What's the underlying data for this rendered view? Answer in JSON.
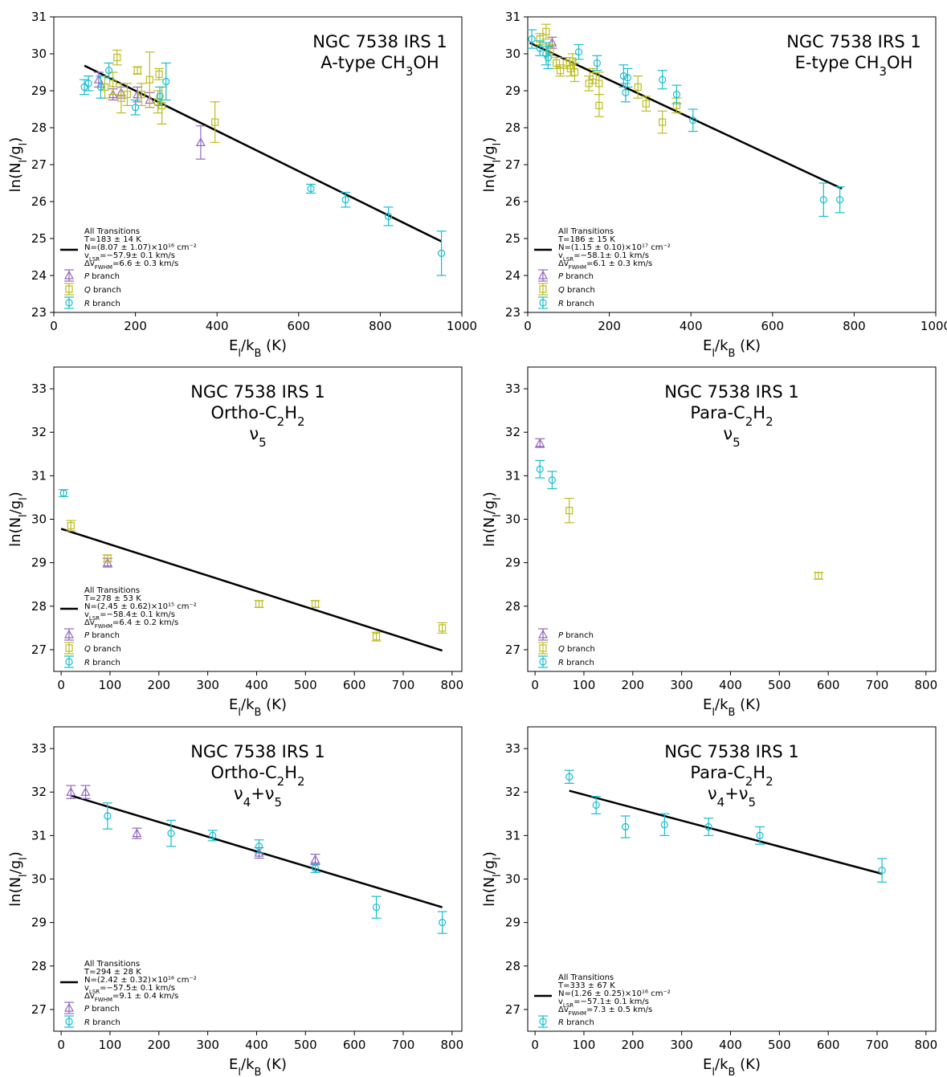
{
  "figure": {
    "panel_title": "NGC 7538 IRS 1",
    "xlabel": "E_l/k_B (K)",
    "ylabel": "ln(N_l/g_l)",
    "legend_fit_title": "All Transitions",
    "legend_p": "P branch",
    "legend_q": "Q branch",
    "legend_r": "R branch",
    "colors": {
      "P": "#9467bd",
      "Q": "#bcbd22",
      "R": "#17becf",
      "fit": "#000000"
    }
  },
  "chart_data": [
    {
      "type": "scatter",
      "subtitle": "A-type CH3OH",
      "xlim": [
        0,
        1000
      ],
      "ylim": [
        23,
        31
      ],
      "xticks": [
        0,
        200,
        400,
        600,
        800,
        1000
      ],
      "yticks": [
        23,
        24,
        25,
        26,
        27,
        28,
        29,
        30,
        31
      ],
      "fit": {
        "x": [
          75,
          950
        ],
        "y": [
          29.68,
          24.92
        ]
      },
      "legend": [
        "T=183 ± 14 K",
        "N=(8.07 ± 1.07)×10¹⁶ cm⁻²",
        "vLSR=−57.9± 0.1 km/s",
        "ΔvFWHM=6.6 ± 0.3 km/s"
      ],
      "legend_branches": [
        "P",
        "Q",
        "R"
      ],
      "series": [
        {
          "branch": "P",
          "points": [
            [
              110,
              29.3,
              0.2
            ],
            [
              145,
              28.9,
              0.15
            ],
            [
              165,
              28.95,
              0.15
            ],
            [
              205,
              28.9,
              0.2
            ],
            [
              235,
              28.75,
              0.2
            ],
            [
              360,
              27.6,
              0.45
            ]
          ]
        },
        {
          "branch": "Q",
          "points": [
            [
              125,
              29.1,
              0.3
            ],
            [
              145,
              29.2,
              0.3
            ],
            [
              155,
              29.9,
              0.2
            ],
            [
              165,
              28.8,
              0.4
            ],
            [
              180,
              28.9,
              0.3
            ],
            [
              205,
              29.55,
              0.1
            ],
            [
              215,
              28.9,
              0.3
            ],
            [
              235,
              29.3,
              0.75
            ],
            [
              255,
              28.7,
              0.3
            ],
            [
              258,
              29.45,
              0.15
            ],
            [
              265,
              28.6,
              0.5
            ],
            [
              395,
              28.15,
              0.55
            ]
          ]
        },
        {
          "branch": "R",
          "points": [
            [
              75,
              29.1,
              0.2
            ],
            [
              85,
              29.2,
              0.2
            ],
            [
              115,
              29.1,
              0.3
            ],
            [
              135,
              29.55,
              0.2
            ],
            [
              200,
              28.55,
              0.2
            ],
            [
              260,
              28.85,
              0.25
            ],
            [
              275,
              29.25,
              0.5
            ],
            [
              630,
              26.35,
              0.12
            ],
            [
              715,
              26.05,
              0.2
            ],
            [
              820,
              25.6,
              0.25
            ],
            [
              950,
              24.6,
              0.6
            ]
          ]
        }
      ]
    },
    {
      "type": "scatter",
      "subtitle": "E-type CH3OH",
      "xlim": [
        0,
        1000
      ],
      "ylim": [
        23,
        31
      ],
      "xticks": [
        0,
        200,
        400,
        600,
        800,
        1000
      ],
      "yticks": [
        23,
        24,
        25,
        26,
        27,
        28,
        29,
        30,
        31
      ],
      "fit": {
        "x": [
          5,
          770
        ],
        "y": [
          30.3,
          26.35
        ]
      },
      "legend": [
        "T=186 ± 15 K",
        "N=(1.15 ± 0.10)×10¹⁷ cm⁻²",
        "vLSR=−58.1± 0.1 km/s",
        "ΔvFWHM=6.1 ± 0.3 km/s"
      ],
      "legend_branches": [
        "P",
        "Q",
        "R"
      ],
      "series": [
        {
          "branch": "P",
          "points": [
            [
              60,
              30.3,
              0.15
            ]
          ]
        },
        {
          "branch": "Q",
          "points": [
            [
              30,
              30.4,
              0.15
            ],
            [
              45,
              30.6,
              0.2
            ],
            [
              55,
              30.1,
              0.15
            ],
            [
              70,
              29.75,
              0.15
            ],
            [
              80,
              29.55,
              0.15
            ],
            [
              95,
              29.75,
              0.15
            ],
            [
              105,
              29.6,
              0.2
            ],
            [
              110,
              29.8,
              0.2
            ],
            [
              115,
              29.5,
              0.25
            ],
            [
              150,
              29.2,
              0.2
            ],
            [
              160,
              29.4,
              0.2
            ],
            [
              175,
              28.6,
              0.3
            ],
            [
              175,
              29.2,
              0.3
            ],
            [
              270,
              29.1,
              0.3
            ],
            [
              290,
              28.65,
              0.2
            ],
            [
              330,
              28.15,
              0.3
            ],
            [
              365,
              28.6,
              0.2
            ]
          ]
        },
        {
          "branch": "R",
          "points": [
            [
              10,
              30.4,
              0.25
            ],
            [
              30,
              30.15,
              0.2
            ],
            [
              45,
              30.0,
              0.3
            ],
            [
              50,
              29.9,
              0.3
            ],
            [
              125,
              30.05,
              0.2
            ],
            [
              170,
              29.75,
              0.2
            ],
            [
              235,
              29.4,
              0.3
            ],
            [
              240,
              28.95,
              0.25
            ],
            [
              245,
              29.35,
              0.25
            ],
            [
              330,
              29.3,
              0.25
            ],
            [
              365,
              28.9,
              0.25
            ],
            [
              405,
              28.2,
              0.3
            ],
            [
              725,
              26.05,
              0.45
            ],
            [
              765,
              26.05,
              0.35
            ]
          ]
        }
      ]
    },
    {
      "type": "scatter",
      "subtitle": "Ortho-C2H2",
      "subtitle2": "ν5",
      "xlim": [
        -15,
        820
      ],
      "ylim": [
        26.5,
        33.5
      ],
      "xticks": [
        0,
        100,
        200,
        300,
        400,
        500,
        600,
        700,
        800
      ],
      "yticks": [
        27,
        28,
        29,
        30,
        31,
        32,
        33
      ],
      "fit": {
        "x": [
          0,
          780
        ],
        "y": [
          29.78,
          26.98
        ]
      },
      "legend": [
        "T=278 ± 53 K",
        "N=(2.45 ± 0.62)×10¹⁵ cm⁻²",
        "vLSR=−58.4± 0.1 km/s",
        "ΔvFWHM=6.4 ± 0.2 km/s"
      ],
      "legend_branches": [
        "P",
        "Q",
        "R"
      ],
      "series": [
        {
          "branch": "P",
          "points": [
            [
              95,
              29.0,
              0.1
            ]
          ]
        },
        {
          "branch": "Q",
          "points": [
            [
              20,
              29.85,
              0.12
            ],
            [
              95,
              29.1,
              0.08
            ],
            [
              405,
              28.05,
              0.08
            ],
            [
              520,
              28.05,
              0.08
            ],
            [
              645,
              27.3,
              0.1
            ],
            [
              780,
              27.5,
              0.12
            ]
          ]
        },
        {
          "branch": "R",
          "points": [
            [
              5,
              30.6,
              0.08
            ]
          ]
        }
      ]
    },
    {
      "type": "scatter",
      "subtitle": "Para-C2H2",
      "subtitle2": "ν5",
      "xlim": [
        -15,
        820
      ],
      "ylim": [
        26.5,
        33.5
      ],
      "xticks": [
        0,
        100,
        200,
        300,
        400,
        500,
        600,
        700,
        800
      ],
      "yticks": [
        27,
        28,
        29,
        30,
        31,
        32,
        33
      ],
      "legend_branches": [
        "P",
        "Q",
        "R"
      ],
      "series": [
        {
          "branch": "P",
          "points": [
            [
              10,
              31.75,
              0.1
            ]
          ]
        },
        {
          "branch": "Q",
          "points": [
            [
              70,
              30.2,
              0.28
            ],
            [
              580,
              28.7,
              0.08
            ]
          ]
        },
        {
          "branch": "R",
          "points": [
            [
              10,
              31.15,
              0.2
            ],
            [
              35,
              30.9,
              0.2
            ]
          ]
        }
      ]
    },
    {
      "type": "scatter",
      "subtitle": "Ortho-C2H2",
      "subtitle2": "ν4+ν5",
      "xlim": [
        -15,
        820
      ],
      "ylim": [
        26.5,
        33.5
      ],
      "xticks": [
        0,
        100,
        200,
        300,
        400,
        500,
        600,
        700,
        800
      ],
      "yticks": [
        27,
        28,
        29,
        30,
        31,
        32,
        33
      ],
      "fit": {
        "x": [
          20,
          780
        ],
        "y": [
          31.92,
          29.35
        ]
      },
      "legend": [
        "T=294 ± 28 K",
        "N=(2.42 ± 0.32)×10¹⁶ cm⁻²",
        "vLSR=−57.5± 0.1 km/s",
        "ΔvFWHM=9.1 ± 0.4 km/s"
      ],
      "legend_branches": [
        "P",
        "R"
      ],
      "series": [
        {
          "branch": "P",
          "points": [
            [
              20,
              32.0,
              0.15
            ],
            [
              50,
              32.0,
              0.15
            ],
            [
              155,
              31.05,
              0.12
            ],
            [
              405,
              30.6,
              0.12
            ],
            [
              520,
              30.45,
              0.12
            ]
          ]
        },
        {
          "branch": "R",
          "points": [
            [
              95,
              31.45,
              0.3
            ],
            [
              225,
              31.05,
              0.3
            ],
            [
              310,
              31.0,
              0.12
            ],
            [
              405,
              30.75,
              0.15
            ],
            [
              520,
              30.25,
              0.1
            ],
            [
              645,
              29.35,
              0.25
            ],
            [
              780,
              29.0,
              0.25
            ]
          ]
        }
      ]
    },
    {
      "type": "scatter",
      "subtitle": "Para-C2H2",
      "subtitle2": "ν4+ν5",
      "xlim": [
        -15,
        820
      ],
      "ylim": [
        26.5,
        33.5
      ],
      "xticks": [
        0,
        100,
        200,
        300,
        400,
        500,
        600,
        700,
        800
      ],
      "yticks": [
        27,
        28,
        29,
        30,
        31,
        32,
        33
      ],
      "fit": {
        "x": [
          70,
          710
        ],
        "y": [
          32.03,
          30.12
        ]
      },
      "legend": [
        "T=333 ± 67 K",
        "N=(1.26 ± 0.25)×10¹⁶ cm⁻²",
        "vLSR=−57.1± 0.1 km/s",
        "ΔvFWHM=7.3 ± 0.5 km/s"
      ],
      "legend_branches": [
        "R"
      ],
      "series": [
        {
          "branch": "R",
          "points": [
            [
              70,
              32.35,
              0.15
            ],
            [
              125,
              31.7,
              0.2
            ],
            [
              185,
              31.2,
              0.25
            ],
            [
              265,
              31.25,
              0.25
            ],
            [
              355,
              31.2,
              0.2
            ],
            [
              460,
              31.0,
              0.2
            ],
            [
              710,
              30.2,
              0.27
            ]
          ]
        }
      ]
    }
  ]
}
